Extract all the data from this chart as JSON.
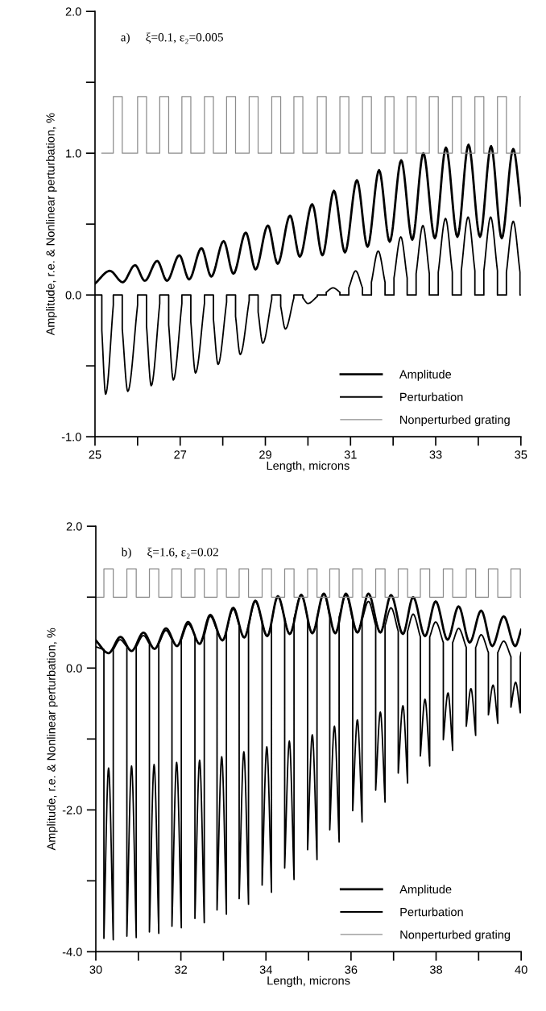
{
  "chart_data": [
    {
      "type": "line",
      "annotations": [
        "a)     ξ=0.1, ε₂=0.005"
      ],
      "xlabel": "Length, microns",
      "ylabel": "Amplitude, r.e. & Nonlinear perturbation, %",
      "xlim": [
        25,
        35
      ],
      "ylim": [
        -1,
        2
      ],
      "xticks": [
        25,
        {
          "value": 26,
          "label": null
        },
        27,
        {
          "value": 28,
          "label": null
        },
        29,
        {
          "value": 30,
          "label": null
        },
        31,
        {
          "value": 32,
          "label": null
        },
        33,
        {
          "value": 34,
          "label": null
        },
        35
      ],
      "yticks": [
        {
          "value": -1,
          "label": "-1.0"
        },
        {
          "value": -0.5,
          "label": null
        },
        {
          "value": 0,
          "label": "0.0"
        },
        {
          "value": 0.5,
          "label": null
        },
        {
          "value": 1,
          "label": "1.0"
        },
        {
          "value": 1.5,
          "label": null
        },
        {
          "value": 2,
          "label": "2.0"
        }
      ],
      "legend": "bottom right",
      "series": [
        {
          "name": "Amplitude",
          "color": "#000000",
          "x": [
            25.0,
            25.35,
            25.65,
            25.94,
            26.17,
            26.46,
            26.69,
            26.98,
            27.21,
            27.5,
            27.73,
            28.02,
            28.25,
            28.54,
            28.77,
            29.06,
            29.29,
            29.58,
            29.81,
            30.1,
            30.34,
            30.61,
            30.87,
            31.15,
            31.4,
            31.67,
            31.92,
            32.19,
            32.45,
            32.71,
            32.98,
            33.24,
            33.51,
            33.77,
            34.04,
            34.3,
            34.55,
            34.82,
            35.0
          ],
          "values": [
            0.08,
            0.17,
            0.09,
            0.21,
            0.1,
            0.24,
            0.1,
            0.28,
            0.11,
            0.33,
            0.13,
            0.38,
            0.15,
            0.44,
            0.18,
            0.49,
            0.22,
            0.56,
            0.27,
            0.64,
            0.28,
            0.735,
            0.3,
            0.81,
            0.34,
            0.88,
            0.375,
            0.95,
            0.39,
            1.0,
            0.4,
            1.04,
            0.41,
            1.06,
            0.41,
            1.05,
            0.4,
            1.03,
            0.63
          ]
        },
        {
          "name": "Perturbation",
          "color": "#000000",
          "x": [
            25.0,
            25.16,
            25.16,
            25.25,
            25.43,
            25.43,
            25.64,
            25.64,
            25.77,
            26.0,
            26.0,
            26.21,
            26.21,
            26.32,
            26.52,
            26.52,
            26.73,
            26.73,
            26.84,
            27.04,
            27.04,
            27.25,
            27.25,
            27.36,
            27.57,
            27.57,
            27.78,
            27.78,
            27.89,
            28.09,
            28.09,
            28.3,
            28.3,
            28.41,
            28.62,
            28.62,
            28.83,
            28.83,
            28.94,
            29.15,
            29.15,
            29.36,
            29.36,
            29.47,
            29.67,
            29.67,
            29.88,
            29.88,
            30.0,
            30.22,
            30.22,
            30.43,
            30.43,
            30.59,
            30.75,
            30.75,
            30.96,
            30.96,
            31.12,
            31.28,
            31.28,
            31.49,
            31.49,
            31.65,
            31.81,
            31.81,
            32.02,
            32.02,
            32.18,
            32.33,
            32.33,
            32.54,
            32.54,
            32.7,
            32.85,
            32.85,
            33.06,
            33.06,
            33.23,
            33.39,
            33.39,
            33.6,
            33.6,
            33.76,
            33.92,
            33.92,
            34.13,
            34.13,
            34.29,
            34.45,
            34.45,
            34.66,
            34.66,
            34.82,
            34.98,
            34.98,
            35.0
          ],
          "values": [
            0,
            0,
            -0.25,
            -0.7,
            -0.07,
            0,
            0,
            -0.24,
            -0.68,
            -0.07,
            0,
            0,
            -0.22,
            -0.64,
            -0.06,
            0,
            0,
            -0.21,
            -0.6,
            -0.06,
            0,
            0,
            -0.19,
            -0.55,
            -0.06,
            0,
            0,
            -0.17,
            -0.49,
            -0.05,
            0,
            0,
            -0.15,
            -0.42,
            -0.04,
            0,
            0,
            -0.12,
            -0.34,
            -0.03,
            0,
            0,
            -0.08,
            -0.24,
            -0.02,
            0,
            0,
            -0.02,
            -0.06,
            -0.01,
            0,
            0,
            0.02,
            0.05,
            0.02,
            0,
            0,
            0.05,
            0.17,
            0.05,
            0,
            0,
            0.09,
            0.31,
            0.09,
            0,
            0,
            0.12,
            0.41,
            0.12,
            0,
            0,
            0.15,
            0.49,
            0.15,
            0,
            0,
            0.16,
            0.54,
            0.16,
            0,
            0,
            0.17,
            0.55,
            0.17,
            0,
            0,
            0.17,
            0.55,
            0.17,
            0,
            0,
            0.16,
            0.52,
            0.16,
            0,
            0
          ]
        },
        {
          "name": "Nonperturbed grating",
          "type": "step",
          "color": "#8c8c8c",
          "x": [
            25.16,
            25.43,
            25.64,
            26.0,
            26.21,
            26.52,
            26.73,
            27.04,
            27.25,
            27.57,
            27.78,
            28.09,
            28.3,
            28.62,
            28.83,
            29.15,
            29.36,
            29.67,
            29.88,
            30.22,
            30.43,
            30.75,
            30.96,
            31.28,
            31.49,
            31.81,
            32.02,
            32.33,
            32.54,
            32.85,
            33.06,
            33.39,
            33.6,
            33.92,
            34.13,
            34.45,
            34.66,
            34.98,
            35.0
          ],
          "values": [
            1.0,
            1.4,
            1.0,
            1.4,
            1.0,
            1.4,
            1.0,
            1.4,
            1.0,
            1.4,
            1.0,
            1.4,
            1.0,
            1.4,
            1.0,
            1.4,
            1.0,
            1.4,
            1.0,
            1.4,
            1.0,
            1.4,
            1.0,
            1.4,
            1.0,
            1.4,
            1.0,
            1.4,
            1.0,
            1.4,
            1.0,
            1.4,
            1.0,
            1.4,
            1.0,
            1.4,
            1.0,
            1.4,
            1.4
          ]
        }
      ]
    },
    {
      "type": "line",
      "annotations": [
        "b)     ξ=1.6, ε₂=0.02"
      ],
      "xlabel": "Length, microns",
      "ylabel": "Amplitude, r.e. & Nonlinear perturbation, %",
      "xlim": [
        30,
        40
      ],
      "ylim": [
        -4,
        2
      ],
      "xticks": [
        30,
        {
          "value": 31,
          "label": null
        },
        32,
        {
          "value": 33,
          "label": null
        },
        34,
        {
          "value": 35,
          "label": null
        },
        36,
        {
          "value": 37,
          "label": null
        },
        38,
        {
          "value": 39,
          "label": null
        },
        40
      ],
      "yticks": [
        {
          "value": -4,
          "label": "-4.0"
        },
        {
          "value": -3,
          "label": null
        },
        {
          "value": -2,
          "label": "-2.0"
        },
        {
          "value": -1,
          "label": null
        },
        {
          "value": 0,
          "label": "0.0"
        },
        {
          "value": 1,
          "label": null
        },
        {
          "value": 2,
          "label": "2.0"
        }
      ],
      "legend": "bottom right",
      "series": [
        {
          "name": "Amplitude",
          "color": "#000000",
          "x": [
            30.0,
            30.3,
            30.58,
            30.84,
            31.12,
            31.38,
            31.65,
            31.91,
            32.17,
            32.44,
            32.69,
            32.98,
            33.23,
            33.49,
            33.75,
            34.03,
            34.28,
            34.56,
            34.83,
            35.09,
            35.36,
            35.63,
            35.88,
            36.15,
            36.41,
            36.69,
            36.94,
            37.22,
            37.46,
            37.74,
            37.99,
            38.27,
            38.53,
            38.79,
            39.06,
            39.32,
            39.59,
            39.86,
            40.0
          ],
          "values": [
            0.39,
            0.21,
            0.44,
            0.24,
            0.5,
            0.27,
            0.56,
            0.31,
            0.65,
            0.34,
            0.75,
            0.39,
            0.85,
            0.43,
            0.95,
            0.45,
            1.01,
            0.48,
            1.03,
            0.49,
            1.05,
            0.49,
            1.05,
            0.5,
            1.05,
            0.5,
            1.03,
            0.48,
            1.0,
            0.45,
            0.94,
            0.4,
            0.87,
            0.36,
            0.81,
            0.31,
            0.73,
            0.31,
            0.54
          ]
        },
        {
          "name": "Perturbation",
          "color": "#000000",
          "x": [
            30.0,
            30.19,
            30.19,
            30.3,
            30.41,
            30.41,
            30.57,
            30.73,
            30.73,
            30.84,
            30.95,
            30.95,
            31.12,
            31.26,
            31.26,
            31.37,
            31.48,
            31.48,
            31.65,
            31.79,
            31.79,
            31.9,
            32.01,
            32.01,
            32.17,
            32.33,
            32.33,
            32.44,
            32.55,
            32.55,
            32.69,
            32.85,
            32.85,
            32.96,
            33.07,
            33.07,
            33.23,
            33.37,
            33.37,
            33.48,
            33.59,
            33.59,
            33.75,
            33.91,
            33.91,
            34.02,
            34.13,
            34.13,
            34.28,
            34.44,
            34.44,
            34.55,
            34.66,
            34.66,
            34.83,
            34.98,
            34.98,
            35.09,
            35.2,
            35.2,
            35.36,
            35.5,
            35.5,
            35.61,
            35.72,
            35.72,
            35.88,
            36.04,
            36.04,
            36.15,
            36.26,
            36.26,
            36.41,
            36.58,
            36.58,
            36.69,
            36.8,
            36.8,
            36.94,
            37.11,
            37.11,
            37.22,
            37.33,
            37.33,
            37.46,
            37.63,
            37.63,
            37.74,
            37.85,
            37.85,
            37.99,
            38.17,
            38.17,
            38.28,
            38.39,
            38.39,
            38.53,
            38.71,
            38.71,
            38.82,
            38.93,
            38.93,
            39.06,
            39.23,
            39.23,
            39.34,
            39.45,
            39.45,
            39.59,
            39.76,
            39.76,
            39.87,
            39.98,
            39.98,
            40.0
          ],
          "values": [
            0.3,
            0.26,
            -3.81,
            -1.41,
            -3.83,
            0.26,
            0.4,
            0.3,
            -3.78,
            -1.38,
            -3.8,
            0.3,
            0.46,
            0.34,
            -3.72,
            -1.36,
            -3.74,
            0.34,
            0.53,
            0.4,
            -3.64,
            -1.33,
            -3.66,
            0.4,
            0.62,
            0.46,
            -3.53,
            -1.3,
            -3.59,
            0.46,
            0.73,
            0.53,
            -3.41,
            -1.25,
            -3.47,
            0.53,
            0.83,
            0.6,
            -3.25,
            -1.18,
            -3.33,
            0.6,
            0.94,
            0.66,
            -3.06,
            -1.11,
            -3.16,
            0.66,
            1.02,
            0.7,
            -2.82,
            -1.03,
            -2.98,
            0.7,
            1.04,
            0.72,
            -2.56,
            -0.94,
            -2.7,
            0.72,
            1.05,
            0.72,
            -2.28,
            -0.82,
            -2.45,
            0.72,
            1.03,
            0.68,
            -2.01,
            -0.73,
            -2.17,
            0.68,
            0.94,
            0.6,
            -1.72,
            -0.62,
            -1.89,
            0.6,
            0.85,
            0.52,
            -1.48,
            -0.53,
            -1.62,
            0.52,
            0.76,
            0.44,
            -1.24,
            -0.44,
            -1.38,
            0.44,
            0.65,
            0.36,
            -1.01,
            -0.35,
            -1.16,
            0.36,
            0.56,
            0.29,
            -0.82,
            -0.29,
            -0.95,
            0.29,
            0.47,
            0.22,
            -0.66,
            -0.24,
            -0.78,
            0.22,
            0.38,
            0.16,
            -0.55,
            -0.2,
            -0.63,
            0.16,
            0.22
          ]
        },
        {
          "name": "Nonperturbed grating",
          "type": "step",
          "color": "#8c8c8c",
          "x": [
            30.0,
            30.19,
            30.41,
            30.73,
            30.95,
            31.26,
            31.48,
            31.79,
            32.01,
            32.33,
            32.55,
            32.85,
            33.07,
            33.37,
            33.59,
            33.91,
            34.13,
            34.44,
            34.66,
            34.98,
            35.2,
            35.5,
            35.72,
            36.04,
            36.26,
            36.58,
            36.8,
            37.11,
            37.33,
            37.63,
            37.85,
            38.17,
            38.39,
            38.71,
            38.93,
            39.23,
            39.45,
            39.76,
            39.98,
            40.0
          ],
          "values": [
            1.0,
            1.4,
            1.0,
            1.4,
            1.0,
            1.4,
            1.0,
            1.4,
            1.0,
            1.4,
            1.0,
            1.4,
            1.0,
            1.4,
            1.0,
            1.4,
            1.0,
            1.4,
            1.0,
            1.4,
            1.0,
            1.4,
            1.0,
            1.4,
            1.0,
            1.4,
            1.0,
            1.4,
            1.0,
            1.4,
            1.0,
            1.4,
            1.0,
            1.4,
            1.0,
            1.4,
            1.0,
            1.4,
            1.0,
            1.0
          ]
        }
      ]
    }
  ]
}
